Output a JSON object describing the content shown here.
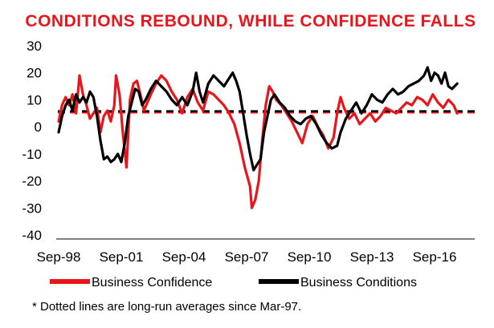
{
  "chart_data": {
    "type": "line",
    "title": "CONDITIONS REBOUND, WHILE CONFIDENCE FALLS",
    "xlabel": "",
    "ylabel": "",
    "ylim": [
      -40,
      30
    ],
    "yticks": [
      "30",
      "20",
      "10",
      "0",
      "-10",
      "-20",
      "-30",
      "-40"
    ],
    "xticks": [
      "Sep-98",
      "Sep-01",
      "Sep-04",
      "Sep-07",
      "Sep-10",
      "Sep-13",
      "Sep-16"
    ],
    "x_unit": "months since Sep-98",
    "series": [
      {
        "name": "Business Confidence",
        "color": "#e8151b",
        "points": [
          [
            0,
            2
          ],
          [
            2,
            8
          ],
          [
            4,
            11
          ],
          [
            6,
            8
          ],
          [
            8,
            12
          ],
          [
            10,
            5
          ],
          [
            12,
            19
          ],
          [
            14,
            12
          ],
          [
            16,
            8
          ],
          [
            18,
            3
          ],
          [
            20,
            5
          ],
          [
            22,
            7
          ],
          [
            24,
            -2
          ],
          [
            26,
            4
          ],
          [
            28,
            6
          ],
          [
            30,
            2
          ],
          [
            32,
            8
          ],
          [
            33,
            19
          ],
          [
            35,
            12
          ],
          [
            37,
            -3
          ],
          [
            39,
            -15
          ],
          [
            41,
            10
          ],
          [
            43,
            16
          ],
          [
            45,
            17
          ],
          [
            47,
            12
          ],
          [
            49,
            6
          ],
          [
            51,
            9
          ],
          [
            53,
            12
          ],
          [
            56,
            16
          ],
          [
            59,
            19
          ],
          [
            62,
            17
          ],
          [
            65,
            13
          ],
          [
            68,
            10
          ],
          [
            71,
            5
          ],
          [
            74,
            11
          ],
          [
            77,
            14
          ],
          [
            80,
            9
          ],
          [
            83,
            6
          ],
          [
            86,
            13
          ],
          [
            89,
            12
          ],
          [
            92,
            10
          ],
          [
            95,
            8
          ],
          [
            98,
            5
          ],
          [
            101,
            1
          ],
          [
            104,
            -6
          ],
          [
            107,
            -15
          ],
          [
            110,
            -22
          ],
          [
            111,
            -30
          ],
          [
            113,
            -27
          ],
          [
            115,
            -20
          ],
          [
            117,
            -5
          ],
          [
            119,
            8
          ],
          [
            121,
            15
          ],
          [
            123,
            13
          ],
          [
            125,
            10
          ],
          [
            128,
            8
          ],
          [
            131,
            5
          ],
          [
            134,
            2
          ],
          [
            137,
            -2
          ],
          [
            140,
            -6
          ],
          [
            143,
            1
          ],
          [
            146,
            4
          ],
          [
            149,
            0
          ],
          [
            152,
            -3
          ],
          [
            155,
            -8
          ],
          [
            158,
            -4
          ],
          [
            160,
            5
          ],
          [
            162,
            11
          ],
          [
            164,
            7
          ],
          [
            167,
            3
          ],
          [
            170,
            5
          ],
          [
            173,
            1
          ],
          [
            176,
            3
          ],
          [
            179,
            5
          ],
          [
            182,
            2
          ],
          [
            185,
            4
          ],
          [
            188,
            7
          ],
          [
            191,
            6
          ],
          [
            194,
            5
          ],
          [
            197,
            7
          ],
          [
            200,
            9
          ],
          [
            203,
            8
          ],
          [
            206,
            11
          ],
          [
            209,
            10
          ],
          [
            212,
            8
          ],
          [
            215,
            12
          ],
          [
            218,
            9
          ],
          [
            221,
            7
          ],
          [
            224,
            10
          ],
          [
            227,
            8
          ],
          [
            229,
            5
          ]
        ]
      },
      {
        "name": "Business Conditions",
        "color": "#000000",
        "points": [
          [
            0,
            -2
          ],
          [
            2,
            4
          ],
          [
            4,
            8
          ],
          [
            6,
            10
          ],
          [
            8,
            6
          ],
          [
            10,
            12
          ],
          [
            12,
            9
          ],
          [
            14,
            11
          ],
          [
            16,
            9
          ],
          [
            18,
            13
          ],
          [
            20,
            11
          ],
          [
            22,
            4
          ],
          [
            24,
            -5
          ],
          [
            26,
            -12
          ],
          [
            28,
            -11
          ],
          [
            30,
            -13
          ],
          [
            32,
            -12
          ],
          [
            34,
            -10
          ],
          [
            36,
            -13
          ],
          [
            38,
            -6
          ],
          [
            40,
            4
          ],
          [
            42,
            9
          ],
          [
            44,
            14
          ],
          [
            46,
            13
          ],
          [
            48,
            8
          ],
          [
            50,
            10
          ],
          [
            53,
            14
          ],
          [
            56,
            17
          ],
          [
            59,
            15
          ],
          [
            62,
            13
          ],
          [
            65,
            10
          ],
          [
            68,
            8
          ],
          [
            71,
            11
          ],
          [
            74,
            8
          ],
          [
            77,
            13
          ],
          [
            79,
            20
          ],
          [
            81,
            13
          ],
          [
            83,
            9
          ],
          [
            86,
            16
          ],
          [
            89,
            19
          ],
          [
            92,
            17
          ],
          [
            95,
            15
          ],
          [
            98,
            18
          ],
          [
            100,
            20
          ],
          [
            102,
            17
          ],
          [
            104,
            13
          ],
          [
            106,
            5
          ],
          [
            108,
            -3
          ],
          [
            110,
            -10
          ],
          [
            112,
            -16
          ],
          [
            114,
            -14
          ],
          [
            116,
            -12
          ],
          [
            118,
            -2
          ],
          [
            120,
            4
          ],
          [
            122,
            10
          ],
          [
            124,
            12
          ],
          [
            127,
            9
          ],
          [
            130,
            7
          ],
          [
            133,
            4
          ],
          [
            136,
            2
          ],
          [
            139,
            1
          ],
          [
            142,
            3
          ],
          [
            145,
            4
          ],
          [
            148,
            1
          ],
          [
            151,
            -3
          ],
          [
            154,
            -6
          ],
          [
            157,
            -8
          ],
          [
            160,
            -7
          ],
          [
            162,
            -2
          ],
          [
            165,
            3
          ],
          [
            168,
            6
          ],
          [
            171,
            9
          ],
          [
            174,
            5
          ],
          [
            177,
            8
          ],
          [
            180,
            12
          ],
          [
            183,
            10
          ],
          [
            186,
            9
          ],
          [
            189,
            12
          ],
          [
            192,
            14
          ],
          [
            195,
            12
          ],
          [
            198,
            13
          ],
          [
            201,
            15
          ],
          [
            204,
            16
          ],
          [
            207,
            17
          ],
          [
            210,
            19
          ],
          [
            212,
            22
          ],
          [
            214,
            17
          ],
          [
            216,
            20
          ],
          [
            218,
            19
          ],
          [
            220,
            16
          ],
          [
            222,
            20
          ],
          [
            224,
            15
          ],
          [
            226,
            14
          ],
          [
            229,
            16
          ]
        ]
      }
    ],
    "reference_lines": [
      {
        "series": "Business Confidence",
        "value": 5.3,
        "style": "dashed",
        "color": "#e8151b"
      },
      {
        "series": "Business Conditions",
        "value": 5.8,
        "style": "dashed",
        "color": "#000000"
      }
    ],
    "grid": false,
    "legend_position": "bottom",
    "footnote": "* Dotted lines are long-run  averages since Mar-97."
  }
}
